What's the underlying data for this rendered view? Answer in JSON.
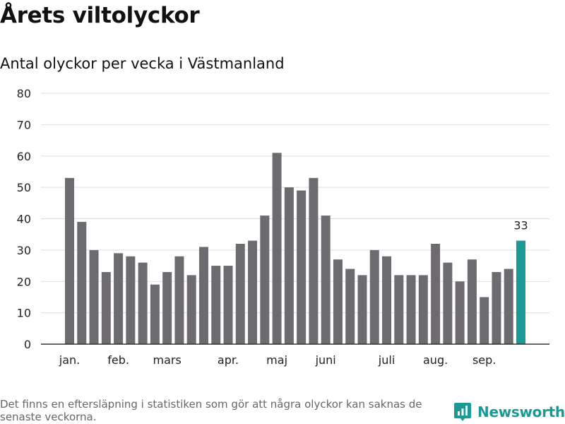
{
  "header": {
    "title": "Årets viltolyckor",
    "subtitle": "Antal olyckor per vecka i Västmanland"
  },
  "footer": {
    "note": "Det finns en eftersläpning i statistiken som gör att några olyckor kan saknas de senaste veckorna.",
    "brand": "Newsworthy"
  },
  "colors": {
    "bar": "#6d6b70",
    "highlight": "#1a9a94",
    "grid": "#dddddd",
    "axis": "#333333"
  },
  "chart_data": {
    "type": "bar",
    "title": "Antal olyckor per vecka i Västmanland",
    "xlabel": "",
    "ylabel": "",
    "ylim": [
      0,
      80
    ],
    "yticks": [
      0,
      10,
      20,
      30,
      40,
      50,
      60,
      70,
      80
    ],
    "grid": true,
    "values": [
      53,
      39,
      30,
      23,
      29,
      28,
      26,
      19,
      23,
      28,
      22,
      31,
      25,
      25,
      32,
      33,
      41,
      61,
      50,
      49,
      53,
      41,
      27,
      24,
      22,
      30,
      28,
      22,
      22,
      22,
      32,
      26,
      20,
      27,
      15,
      23,
      24,
      33
    ],
    "month_labels": [
      {
        "label": "jan.",
        "bar_index": 0
      },
      {
        "label": "feb.",
        "bar_index": 4
      },
      {
        "label": "mars",
        "bar_index": 8
      },
      {
        "label": "apr.",
        "bar_index": 13
      },
      {
        "label": "maj",
        "bar_index": 17
      },
      {
        "label": "juni",
        "bar_index": 21
      },
      {
        "label": "juli",
        "bar_index": 26
      },
      {
        "label": "aug.",
        "bar_index": 30
      },
      {
        "label": "sep.",
        "bar_index": 34
      }
    ],
    "highlight_index": 37,
    "annotations": [
      {
        "bar_index": 37,
        "text": "33"
      }
    ]
  }
}
